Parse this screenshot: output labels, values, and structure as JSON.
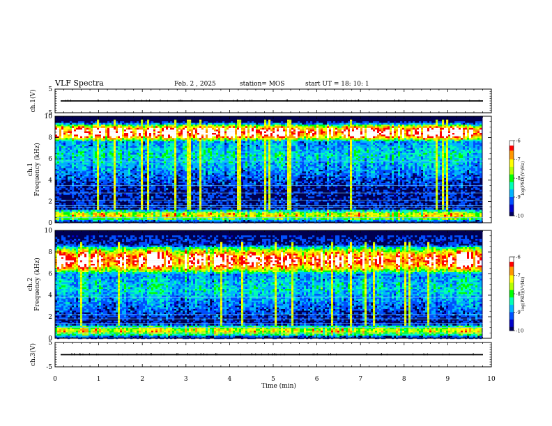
{
  "header": {
    "title": "VLF Spectra",
    "date": "Feb. 2 , 2025",
    "station": "station= MOS",
    "start": "start  UT =   18: 10: 1"
  },
  "chart_data": [
    {
      "type": "line",
      "panel": "ch1-waveform",
      "ylabel": "ch.1(V)",
      "ylim": [
        -5,
        5
      ],
      "yticks": [
        "5",
        "-5"
      ],
      "xlim": [
        0,
        10
      ],
      "baseline_value": 0
    },
    {
      "type": "heatmap",
      "panel": "ch1-spectrogram",
      "ylabel": "ch.1\nFrequency (kHz)",
      "xlim": [
        0,
        10
      ],
      "ylim": [
        0,
        10
      ],
      "yticks": [
        "0",
        "2",
        "4",
        "6",
        "8",
        "10"
      ],
      "colorbar": {
        "label": "log(PSD)(V²/Hz)",
        "range": [
          -10,
          -6
        ],
        "ticks": [
          "-6",
          "-7",
          "-8",
          "-9",
          "-10"
        ]
      },
      "data_extent_min": 9.8,
      "intense_band_khz": [
        7.8,
        9.2
      ],
      "low_band_khz": [
        0.2,
        1.2
      ],
      "lines_khz": [
        0.5,
        1.0,
        1.4,
        1.6,
        2.1,
        2.8,
        3.5,
        5.8
      ]
    },
    {
      "type": "heatmap",
      "panel": "ch2-spectrogram",
      "ylabel": "ch.2\nFrequency (kHz)",
      "xlim": [
        0,
        10
      ],
      "ylim": [
        0,
        10
      ],
      "yticks": [
        "0",
        "2",
        "4",
        "6",
        "8",
        "10"
      ],
      "colorbar": {
        "label": "log(PSD)(V²/Hz)",
        "range": [
          -10,
          -6
        ],
        "ticks": [
          "-6",
          "-7",
          "-8",
          "-9",
          "-10"
        ]
      },
      "data_extent_min": 9.8,
      "intense_band_khz": [
        6.2,
        8.4
      ],
      "low_band_khz": [
        0.2,
        1.2
      ],
      "lines_khz": [
        0.5,
        1.0,
        1.4,
        1.8,
        2.2,
        3.8
      ]
    },
    {
      "type": "line",
      "panel": "ch3-waveform",
      "ylabel": "ch.3(V)",
      "ylim": [
        -5,
        5
      ],
      "yticks": [
        "5",
        "-5"
      ],
      "xlim": [
        0,
        10
      ],
      "baseline_value": 0
    }
  ],
  "xaxis": {
    "label": "Time  (min)",
    "ticks": [
      "0",
      "1",
      "2",
      "3",
      "4",
      "5",
      "6",
      "7",
      "8",
      "9",
      "10"
    ]
  },
  "colormap": [
    "#000060",
    "#0000c8",
    "#0050ff",
    "#00b4ff",
    "#00ffb4",
    "#00ff00",
    "#b4ff00",
    "#ffff00",
    "#ff9600",
    "#ff0000",
    "#ffffff"
  ]
}
